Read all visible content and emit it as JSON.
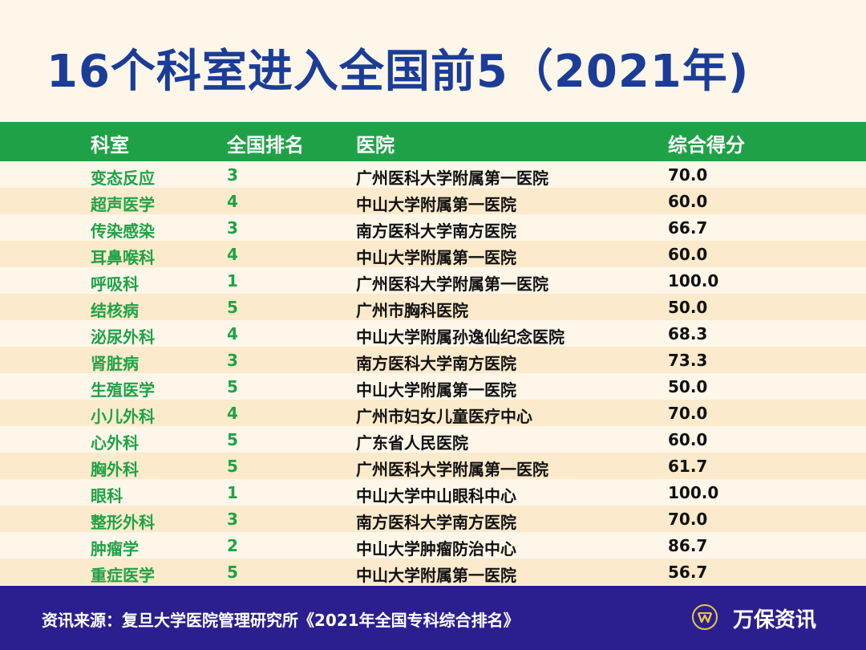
{
  "title": "16个科室进入全国前5（2021年)",
  "table": {
    "headers": [
      "科室",
      "全国排名",
      "医院",
      "综合得分"
    ],
    "rows": [
      [
        "变态反应",
        "3",
        "广州医科大学附属第一医院",
        "70.0"
      ],
      [
        "超声医学",
        "4",
        "中山大学附属第一医院",
        "60.0"
      ],
      [
        "传染感染",
        "3",
        "南方医科大学南方医院",
        "66.7"
      ],
      [
        "耳鼻喉科",
        "4",
        "中山大学附属第一医院",
        "60.0"
      ],
      [
        "呼吸科",
        "1",
        "广州医科大学附属第一医院",
        "100.0"
      ],
      [
        "结核病",
        "5",
        "广州市胸科医院",
        "50.0"
      ],
      [
        "泌尿外科",
        "4",
        "中山大学附属孙逸仙纪念医院",
        "68.3"
      ],
      [
        "肾脏病",
        "3",
        "南方医科大学南方医院",
        "73.3"
      ],
      [
        "生殖医学",
        "5",
        "中山大学附属第一医院",
        "50.0"
      ],
      [
        "小儿外科",
        "4",
        "广州市妇女儿童医疗中心",
        "70.0"
      ],
      [
        "心外科",
        "5",
        "广东省人民医院",
        "60.0"
      ],
      [
        "胸外科",
        "5",
        "广州医科大学附属第一医院",
        "61.7"
      ],
      [
        "眼科",
        "1",
        "中山大学中山眼科中心",
        "100.0"
      ],
      [
        "整形外科",
        "3",
        "南方医科大学南方医院",
        "70.0"
      ],
      [
        "肿瘤学",
        "2",
        "中山大学肿瘤防治中心",
        "86.7"
      ],
      [
        "重症医学",
        "5",
        "中山大学附属第一医院",
        "56.7"
      ]
    ]
  },
  "footer": {
    "source": "资讯来源：复旦大学医院管理研究所《2021年全国专科综合排名》",
    "brand": "万保资讯",
    "logo_icon": "w-circle-logo"
  },
  "colors": {
    "title": "#1b3d98",
    "header": "#1fa247",
    "footer": "#2b1f8f",
    "accent_gold": "#e3c74a"
  }
}
